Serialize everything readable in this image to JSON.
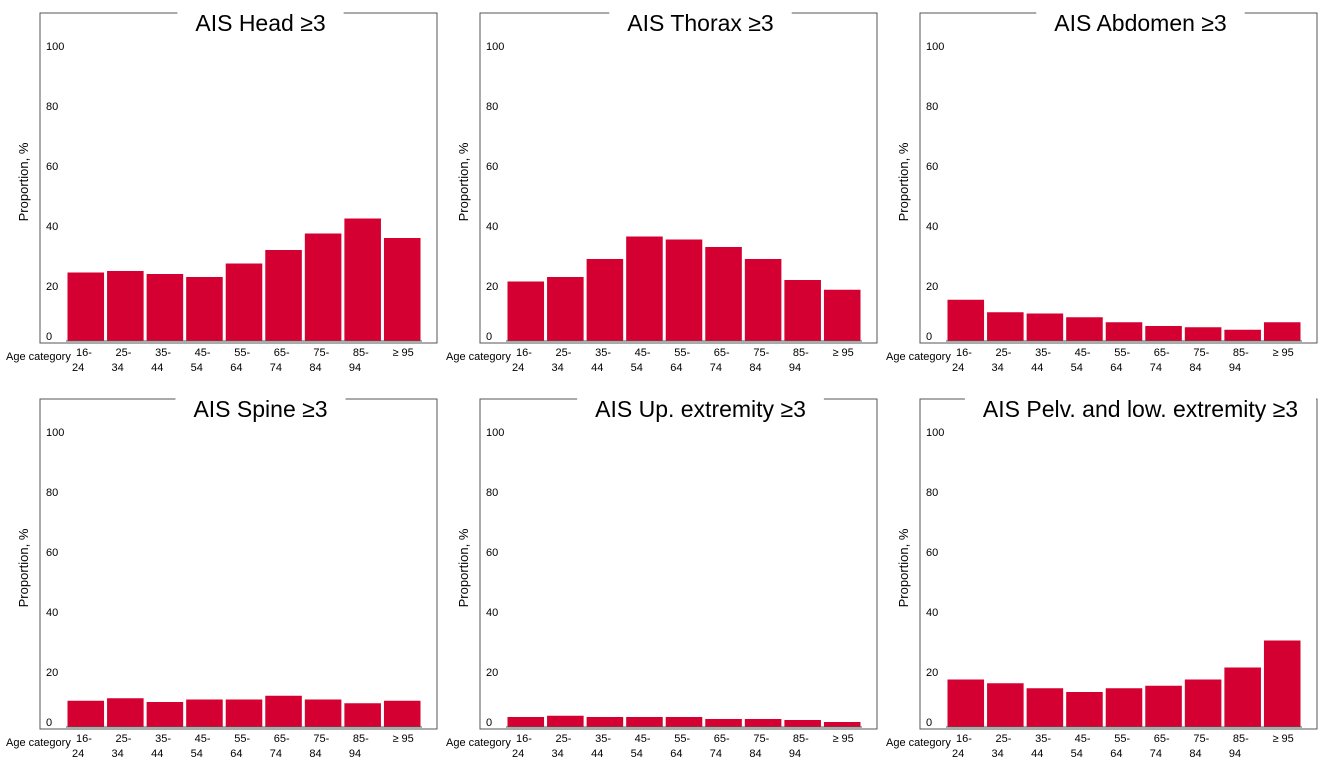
{
  "chart_data": [
    {
      "type": "bar",
      "title": "AIS Head ≥3",
      "ylabel": "Proportion, %",
      "xlabel": "Age category",
      "ylim": [
        0,
        110
      ],
      "yticks": [
        "0",
        "20",
        "40",
        "60",
        "80",
        "100"
      ],
      "categories": [
        [
          "16-",
          "24"
        ],
        [
          "25-",
          "34"
        ],
        [
          "35-",
          "44"
        ],
        [
          "45-",
          "54"
        ],
        [
          "55-",
          "64"
        ],
        [
          "65-",
          "74"
        ],
        [
          "75-",
          "84"
        ],
        [
          "85-",
          "94"
        ],
        [
          "≥ 95",
          ""
        ]
      ],
      "values": [
        24.5,
        25,
        24,
        23,
        27.5,
        32,
        37.5,
        42.5,
        36
      ],
      "color": "#d50032"
    },
    {
      "type": "bar",
      "title": "AIS Thorax ≥3",
      "ylabel": "Proportion, %",
      "xlabel": "Age category",
      "ylim": [
        0,
        110
      ],
      "yticks": [
        "0",
        "20",
        "40",
        "60",
        "80",
        "100"
      ],
      "categories": [
        [
          "16-",
          "24"
        ],
        [
          "25-",
          "34"
        ],
        [
          "35-",
          "44"
        ],
        [
          "45-",
          "54"
        ],
        [
          "55-",
          "64"
        ],
        [
          "65-",
          "74"
        ],
        [
          "75-",
          "84"
        ],
        [
          "85-",
          "94"
        ],
        [
          "≥ 95",
          ""
        ]
      ],
      "values": [
        21.5,
        23,
        29,
        36.5,
        35.5,
        33,
        29,
        22,
        18.5
      ],
      "color": "#d50032"
    },
    {
      "type": "bar",
      "title": "AIS Abdomen ≥3",
      "ylabel": "Proportion, %",
      "xlabel": "Age category",
      "ylim": [
        0,
        110
      ],
      "yticks": [
        "0",
        "20",
        "40",
        "60",
        "80",
        "100"
      ],
      "categories": [
        [
          "16-",
          "24"
        ],
        [
          "25-",
          "34"
        ],
        [
          "35-",
          "44"
        ],
        [
          "45-",
          "54"
        ],
        [
          "55-",
          "64"
        ],
        [
          "65-",
          "74"
        ],
        [
          "75-",
          "84"
        ],
        [
          "85-",
          "94"
        ],
        [
          "≥ 95",
          ""
        ]
      ],
      "values": [
        14.5,
        9.5,
        9,
        7.5,
        5.5,
        4,
        3.5,
        2.5,
        5.5
      ],
      "color": "#d50032"
    },
    {
      "type": "bar",
      "title": "AIS Spine ≥3",
      "ylabel": "Proportion, %",
      "xlabel": "Age category",
      "ylim": [
        0,
        110
      ],
      "yticks": [
        "0",
        "20",
        "40",
        "60",
        "80",
        "100"
      ],
      "categories": [
        [
          "16-",
          "24"
        ],
        [
          "25-",
          "34"
        ],
        [
          "35-",
          "44"
        ],
        [
          "45-",
          "54"
        ],
        [
          "55-",
          "64"
        ],
        [
          "65-",
          "74"
        ],
        [
          "75-",
          "84"
        ],
        [
          "85-",
          "94"
        ],
        [
          "≥ 95",
          ""
        ]
      ],
      "values": [
        8.5,
        9.5,
        8,
        9,
        9,
        10.5,
        9,
        7.5,
        8.5
      ],
      "color": "#d50032"
    },
    {
      "type": "bar",
      "title": "AIS Up. extremity ≥3",
      "ylabel": "Proportion, %",
      "xlabel": "Age category",
      "ylim": [
        0,
        110
      ],
      "yticks": [
        "0",
        "20",
        "40",
        "60",
        "80",
        "100"
      ],
      "categories": [
        [
          "16-",
          "24"
        ],
        [
          "25-",
          "34"
        ],
        [
          "35-",
          "44"
        ],
        [
          "45-",
          "54"
        ],
        [
          "55-",
          "64"
        ],
        [
          "65-",
          "74"
        ],
        [
          "75-",
          "84"
        ],
        [
          "85-",
          "94"
        ],
        [
          "≥ 95",
          ""
        ]
      ],
      "values": [
        2,
        2.5,
        2,
        2,
        2,
        1.2,
        1.2,
        0.8,
        0
      ],
      "color": "#d50032"
    },
    {
      "type": "bar",
      "title": "AIS Pelv. and low. extremity ≥3",
      "ylabel": "Proportion, %",
      "xlabel": "Age category",
      "ylim": [
        0,
        110
      ],
      "yticks": [
        "0",
        "20",
        "40",
        "60",
        "80",
        "100"
      ],
      "categories": [
        [
          "16-",
          "24"
        ],
        [
          "25-",
          "34"
        ],
        [
          "35-",
          "44"
        ],
        [
          "45-",
          "54"
        ],
        [
          "55-",
          "64"
        ],
        [
          "65-",
          "74"
        ],
        [
          "75-",
          "84"
        ],
        [
          "85-",
          "94"
        ],
        [
          "≥ 95",
          ""
        ]
      ],
      "values": [
        17,
        15.5,
        13.5,
        12,
        13.5,
        14.5,
        17,
        21.5,
        30.5
      ],
      "color": "#d50032"
    }
  ]
}
